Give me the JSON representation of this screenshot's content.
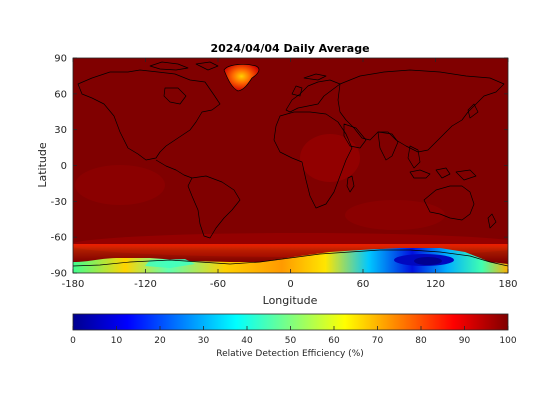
{
  "chart_data": {
    "type": "heatmap",
    "title": "2024/04/04 Daily Average",
    "xlabel": "Longitude",
    "ylabel": "Latitude",
    "xlim": [
      -180,
      180
    ],
    "ylim": [
      -90,
      90
    ],
    "x_ticks": [
      -180,
      -120,
      -60,
      0,
      60,
      120,
      180
    ],
    "y_ticks": [
      90,
      60,
      30,
      0,
      -30,
      -60,
      -90
    ],
    "colormap": "jet",
    "color_range": [
      0,
      100
    ],
    "colorbar": {
      "label": "Relative Detection Efficiency (%)",
      "ticks": [
        0,
        10,
        20,
        30,
        40,
        50,
        60,
        70,
        80,
        90,
        100
      ],
      "placement": "bottom"
    },
    "background_value": 100,
    "regions": [
      {
        "name": "Greenland",
        "value": 88
      },
      {
        "name": "Antarctica (western sector)",
        "value": 65
      },
      {
        "name": "Antarctica (eastern sector)",
        "value": 12
      }
    ],
    "coastlines": true,
    "grid": false
  }
}
